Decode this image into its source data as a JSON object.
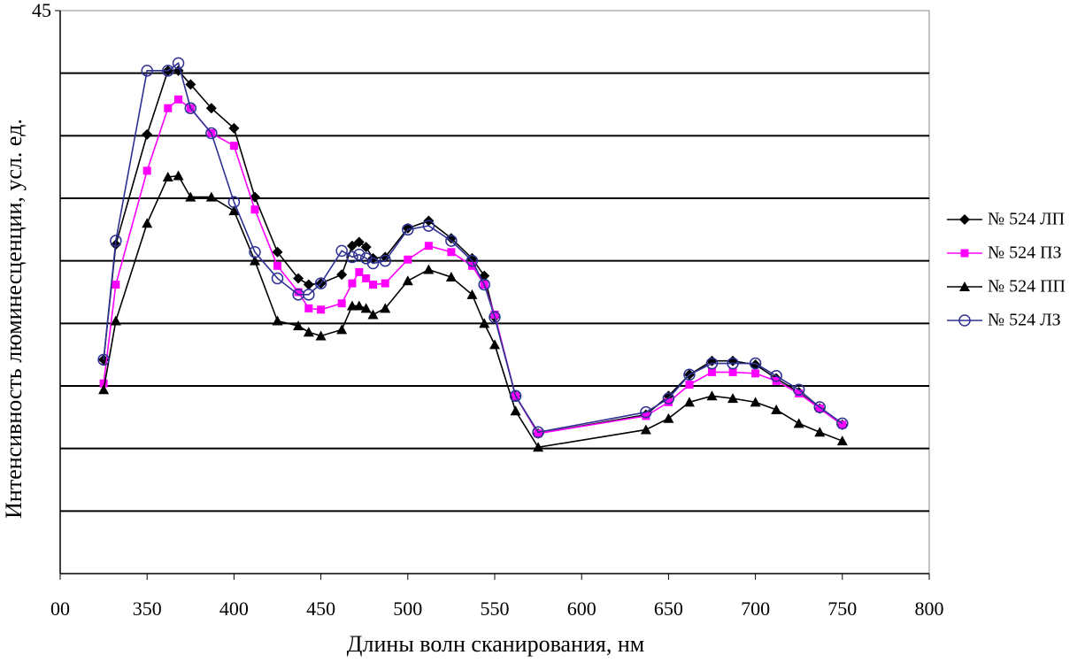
{
  "chart_data": {
    "type": "line",
    "xlabel": "Длины волн сканирования, нм",
    "ylabel": "Интенсивность люминесценции, усл. ед.",
    "x": [
      325,
      332,
      350,
      362,
      368,
      375,
      387,
      400,
      412,
      425,
      437,
      443,
      450,
      462,
      468,
      472,
      476,
      480,
      487,
      500,
      512,
      525,
      537,
      544,
      550,
      562,
      575,
      637,
      650,
      662,
      675,
      687,
      700,
      712,
      725,
      737,
      750
    ],
    "series": [
      {
        "name": "№ 524 ЛП",
        "color": "#000000",
        "marker": "diamond",
        "values": [
          17.1,
          26.3,
          35.1,
          40.2,
          40.2,
          39.1,
          37.2,
          35.6,
          30.1,
          25.7,
          23.6,
          23.1,
          23.2,
          23.9,
          26.2,
          26.5,
          26.1,
          25.2,
          25.3,
          27.6,
          28.2,
          26.8,
          25.2,
          23.8,
          20.5,
          14.2,
          11.2,
          12.7,
          14.2,
          15.9,
          17.0,
          17.0,
          16.7,
          15.6,
          14.5,
          13.2,
          11.9
        ]
      },
      {
        "name": "№ 524 ПЗ",
        "color": "#ff00ff",
        "marker": "square",
        "values": [
          15.2,
          23.1,
          32.2,
          37.2,
          37.9,
          37.2,
          35.2,
          34.2,
          29.1,
          24.6,
          22.5,
          21.2,
          21.1,
          21.6,
          23.2,
          24.1,
          23.6,
          23.1,
          23.2,
          25.1,
          26.2,
          25.7,
          24.6,
          23.1,
          20.7,
          14.2,
          11.2,
          12.6,
          13.7,
          15.1,
          16.1,
          16.1,
          16.0,
          15.4,
          14.4,
          13.2,
          11.9
        ]
      },
      {
        "name": "№ 524 ПП",
        "color": "#000000",
        "marker": "triangle",
        "values": [
          14.7,
          20.2,
          28.0,
          31.7,
          31.8,
          30.1,
          30.1,
          29.0,
          25.0,
          20.2,
          19.8,
          19.3,
          19.0,
          19.5,
          21.4,
          21.4,
          21.2,
          20.7,
          21.2,
          23.4,
          24.3,
          23.7,
          22.3,
          20.0,
          18.3,
          13.0,
          10.1,
          11.5,
          12.4,
          13.7,
          14.2,
          14.0,
          13.7,
          13.1,
          12.0,
          11.3,
          10.6
        ]
      },
      {
        "name": "№ 524 ЛЗ",
        "color": "#2e3192",
        "marker": "circle-open",
        "values": [
          17.1,
          26.6,
          40.2,
          40.2,
          40.8,
          37.2,
          35.2,
          29.7,
          25.7,
          23.6,
          22.3,
          22.3,
          23.2,
          25.8,
          25.3,
          25.5,
          25.2,
          24.8,
          25.0,
          27.5,
          27.8,
          26.6,
          25.0,
          23.1,
          20.5,
          14.2,
          11.3,
          12.9,
          14.0,
          15.9,
          16.8,
          16.8,
          16.8,
          15.8,
          14.7,
          13.3,
          12.0
        ]
      }
    ],
    "xlim": [
      300,
      800
    ],
    "xticks": [
      {
        "value": 300,
        "label": "00"
      },
      350,
      400,
      450,
      500,
      550,
      600,
      650,
      700,
      750,
      800
    ],
    "ylim": [
      0,
      45
    ],
    "yticks": [
      45
    ],
    "ygrid": [
      5,
      10,
      15,
      20,
      25,
      30,
      35,
      40
    ],
    "legend": "right"
  }
}
